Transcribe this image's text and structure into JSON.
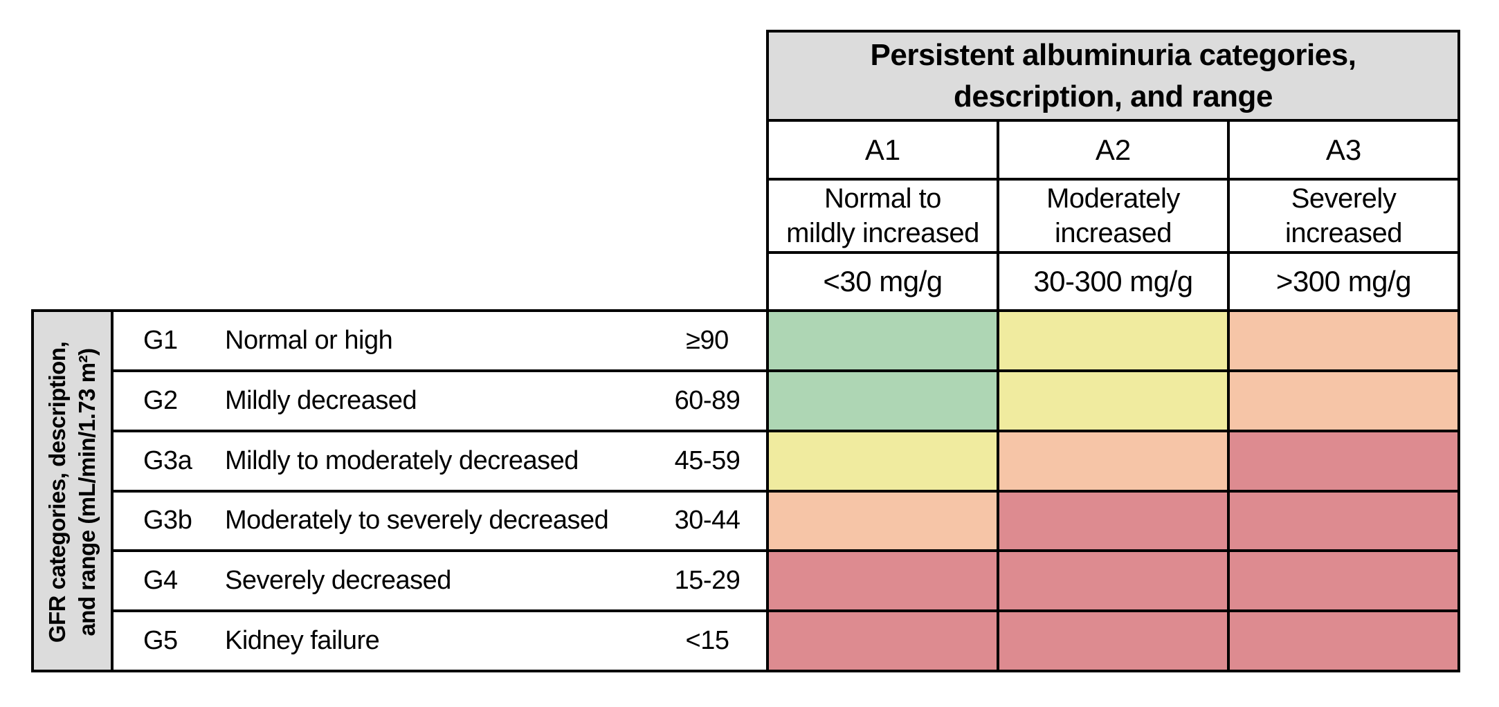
{
  "albuminuria_header": {
    "title": "Persistent albuminuria categories,\ndescription, and range"
  },
  "albuminuria_categories": [
    {
      "code": "A1",
      "description": "Normal to\nmildly increased",
      "range": "<30 mg/g"
    },
    {
      "code": "A2",
      "description": "Moderately\nincreased",
      "range": "30-300 mg/g"
    },
    {
      "code": "A3",
      "description": "Severely\nincreased",
      "range": ">300 mg/g"
    }
  ],
  "gfr_header": {
    "label": "GFR categories, description,\nand range (mL/min/1.73 m²)"
  },
  "gfr_categories": [
    {
      "code": "G1",
      "description": "Normal or high",
      "range": "≥90"
    },
    {
      "code": "G2",
      "description": "Mildly decreased",
      "range": "60-89"
    },
    {
      "code": "G3a",
      "description": "Mildly to moderately decreased",
      "range": "45-59"
    },
    {
      "code": "G3b",
      "description": "Moderately to severely decreased",
      "range": "30-44"
    },
    {
      "code": "G4",
      "description": "Severely decreased",
      "range": "15-29"
    },
    {
      "code": "G5",
      "description": "Kidney failure",
      "range": "<15"
    }
  ],
  "colors": {
    "green": "#aed6b4",
    "yellow": "#f0eb9f",
    "orange": "#f6c5a7",
    "red": "#dd8b90",
    "header_bg": "#dcdcdc",
    "border": "#000000"
  },
  "chart_data": {
    "type": "heatmap",
    "columns": [
      "A1",
      "A2",
      "A3"
    ],
    "column_descriptions": [
      "Normal to mildly increased (<30 mg/g)",
      "Moderately increased (30-300 mg/g)",
      "Severely increased (>300 mg/g)"
    ],
    "rows": [
      "G1",
      "G2",
      "G3a",
      "G3b",
      "G4",
      "G5"
    ],
    "row_descriptions": [
      "Normal or high (≥90)",
      "Mildly decreased (60-89)",
      "Mildly to moderately decreased (45-59)",
      "Moderately to severely decreased (30-44)",
      "Severely decreased (15-29)",
      "Kidney failure (<15)"
    ],
    "matrix": [
      [
        "green",
        "yellow",
        "orange"
      ],
      [
        "green",
        "yellow",
        "orange"
      ],
      [
        "yellow",
        "orange",
        "red"
      ],
      [
        "orange",
        "red",
        "red"
      ],
      [
        "red",
        "red",
        "red"
      ],
      [
        "red",
        "red",
        "red"
      ]
    ]
  }
}
